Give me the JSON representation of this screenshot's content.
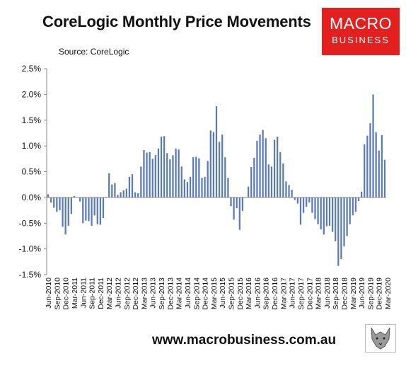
{
  "title": "CoreLogic Monthly Price Movements",
  "source": "Source: CoreLogic",
  "logo": {
    "line1": "MACRO",
    "line2": "BUSINESS"
  },
  "footer": "www.macrobusiness.com.au",
  "colors": {
    "bar": "#5b7ab8",
    "logo_bg": "#e1201f",
    "axis": "#888888"
  },
  "chart_data": {
    "type": "bar",
    "ylim": [
      -1.5,
      2.5
    ],
    "yticks": [
      -1.5,
      -1.0,
      -0.5,
      0.0,
      0.5,
      1.0,
      1.5,
      2.0,
      2.5
    ],
    "ytick_labels": [
      "-1.5%",
      "-1.0%",
      "-0.5%",
      "0.0%",
      "0.5%",
      "1.0%",
      "1.5%",
      "2.0%",
      "2.5%"
    ],
    "x_tick_labels": [
      "Jun-2010",
      "Sep-2010",
      "Dec-2010",
      "Mar-2011",
      "Jun-2011",
      "Sep-2011",
      "Dec-2011",
      "Mar-2012",
      "Jun-2012",
      "Sep-2012",
      "Dec-2012",
      "Mar-2013",
      "Jun-2013",
      "Sep-2013",
      "Dec-2013",
      "Mar-2014",
      "Jun-2014",
      "Sep-2014",
      "Dec-2014",
      "Mar-2015",
      "Jun-2015",
      "Sep-2015",
      "Dec-2015",
      "Mar-2016",
      "Jun-2016",
      "Sep-2016",
      "Dec-2016",
      "Mar-2017",
      "Jun-2017",
      "Sep-2017",
      "Dec-2017",
      "Mar-2018",
      "Jun-2018",
      "Sep-2018",
      "Dec-2018",
      "Mar-2019",
      "Jun-2019",
      "Sep-2019",
      "Dec-2019",
      "Mar-2020"
    ],
    "values": [
      0.06,
      -0.1,
      -0.2,
      -0.28,
      -0.25,
      -0.57,
      -0.72,
      -0.55,
      -0.32,
      0.03,
      0.0,
      -0.08,
      -0.5,
      -0.45,
      -0.46,
      -0.55,
      -0.35,
      -0.52,
      -0.53,
      -0.4,
      0.01,
      0.47,
      0.25,
      0.28,
      0.05,
      0.1,
      0.14,
      0.17,
      0.4,
      0.45,
      0.1,
      0.08,
      0.6,
      0.92,
      0.87,
      0.88,
      0.75,
      0.82,
      0.95,
      1.18,
      1.19,
      0.86,
      0.74,
      0.82,
      0.95,
      0.93,
      0.6,
      0.35,
      0.3,
      0.4,
      0.78,
      0.79,
      0.76,
      0.38,
      0.4,
      0.71,
      1.3,
      1.27,
      1.77,
      1.08,
      1.22,
      0.78,
      0.38,
      -0.17,
      -0.43,
      -0.21,
      -0.63,
      -0.26,
      0.0,
      0.21,
      0.59,
      0.77,
      1.1,
      1.22,
      1.31,
      1.15,
      0.64,
      0.6,
      1.12,
      1.18,
      0.88,
      0.66,
      0.31,
      0.24,
      0.15,
      -0.05,
      -0.12,
      -0.53,
      -0.3,
      -0.18,
      -0.1,
      -0.3,
      -0.42,
      -0.52,
      -0.62,
      -0.72,
      -0.56,
      -0.55,
      -0.67,
      -0.85,
      -1.33,
      -1.2,
      -0.95,
      -0.75,
      -0.52,
      -0.35,
      -0.28,
      -0.07,
      0.11,
      1.03,
      1.2,
      1.44,
      2.0,
      1.27,
      0.91,
      1.21,
      0.73
    ]
  }
}
